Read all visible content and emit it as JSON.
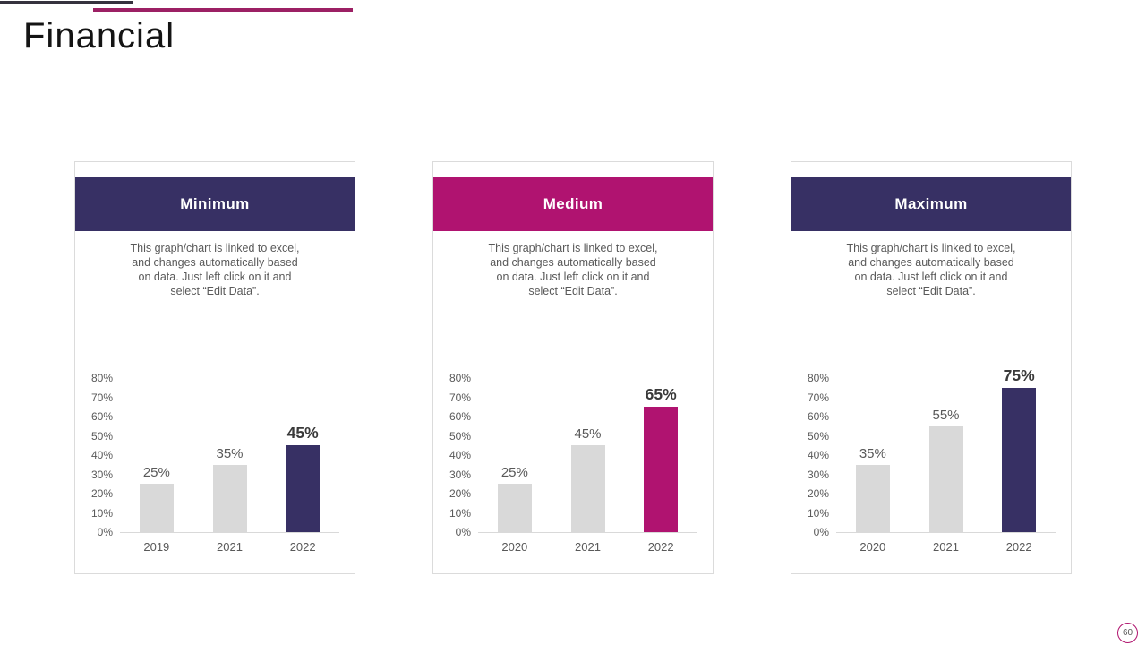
{
  "page": {
    "title": "Financial",
    "page_number": "60"
  },
  "colors": {
    "navy": "#373064",
    "magenta": "#B01370",
    "bar_gray": "#D9D9D9",
    "text_gray": "#595959",
    "top_line_dark": "#35323E",
    "top_line_magenta": "#9C2064",
    "badge_border": "#B0146E"
  },
  "description": "This graph/chart is linked to excel,\nand changes automatically based\non data. Just left click on it and\nselect “Edit Data”.",
  "chart_data": [
    {
      "type": "bar",
      "title": "Minimum",
      "categories": [
        "2019",
        "2021",
        "2022"
      ],
      "values": [
        25,
        35,
        45
      ],
      "unit": "%",
      "ylim": [
        0,
        80
      ],
      "ytick_step": 10,
      "grid": false,
      "legend": "none",
      "xlabel": "",
      "ylabel": "",
      "bar_color": "#D9D9D9",
      "accent": "#373064",
      "highlight_index": 2
    },
    {
      "type": "bar",
      "title": "Medium",
      "categories": [
        "2020",
        "2021",
        "2022"
      ],
      "values": [
        25,
        45,
        65
      ],
      "unit": "%",
      "ylim": [
        0,
        80
      ],
      "ytick_step": 10,
      "grid": false,
      "legend": "none",
      "xlabel": "",
      "ylabel": "",
      "bar_color": "#D9D9D9",
      "accent": "#B01370",
      "highlight_index": 2
    },
    {
      "type": "bar",
      "title": "Maximum",
      "categories": [
        "2020",
        "2021",
        "2022"
      ],
      "values": [
        35,
        55,
        75
      ],
      "unit": "%",
      "ylim": [
        0,
        80
      ],
      "ytick_step": 10,
      "grid": false,
      "legend": "none",
      "xlabel": "",
      "ylabel": "",
      "bar_color": "#D9D9D9",
      "accent": "#373064",
      "highlight_index": 2
    }
  ]
}
